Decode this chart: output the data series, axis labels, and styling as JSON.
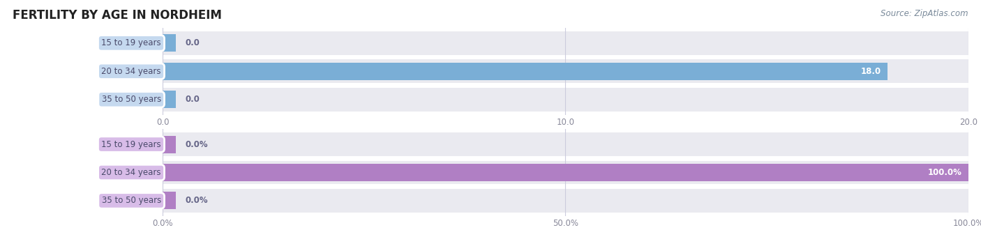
{
  "title": "FERTILITY BY AGE IN NORDHEIM",
  "source": "Source: ZipAtlas.com",
  "top_chart": {
    "categories": [
      "15 to 19 years",
      "20 to 34 years",
      "35 to 50 years"
    ],
    "values": [
      0.0,
      18.0,
      0.0
    ],
    "xlim": [
      0,
      20.0
    ],
    "xticks": [
      0.0,
      10.0,
      20.0
    ],
    "xtick_labels": [
      "0.0",
      "10.0",
      "20.0"
    ],
    "bar_color": "#7aaed6",
    "bar_height": 0.62,
    "value_labels": [
      "0.0",
      "18.0",
      "0.0"
    ],
    "row_bg_color": "#eaeaf0",
    "row_bg_alt_color": "#e0e0ea"
  },
  "bottom_chart": {
    "categories": [
      "15 to 19 years",
      "20 to 34 years",
      "35 to 50 years"
    ],
    "values": [
      0.0,
      100.0,
      0.0
    ],
    "xlim": [
      0,
      100.0
    ],
    "xticks": [
      0.0,
      50.0,
      100.0
    ],
    "xtick_labels": [
      "0.0%",
      "50.0%",
      "100.0%"
    ],
    "bar_color": "#b07fc4",
    "bar_height": 0.62,
    "value_labels": [
      "0.0%",
      "100.0%",
      "0.0%"
    ],
    "row_bg_color": "#eaeaf0",
    "row_bg_alt_color": "#e0e0ea"
  },
  "label_bg_color_top": "#c5d9ef",
  "label_bg_color_bottom": "#d8bce8",
  "label_text_color": "#4a4a6a",
  "title_color": "#222222",
  "source_color": "#7a8a9a",
  "grid_color": "#ccccdd",
  "tick_color": "#888899",
  "value_label_color_inside": "#ffffff",
  "value_label_color_outside": "#666688",
  "row_sep_color": "#ffffff"
}
